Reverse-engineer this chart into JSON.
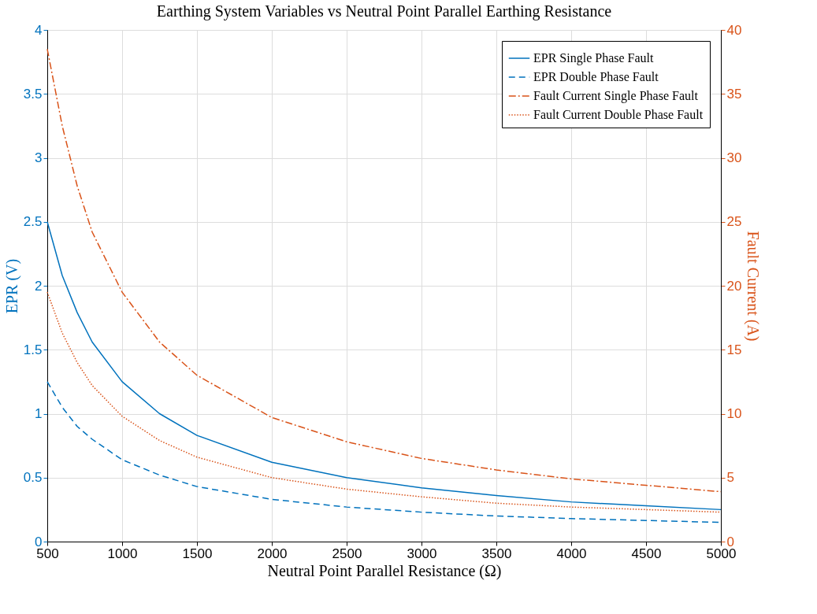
{
  "chart_data": {
    "type": "line",
    "title": "Earthing System Variables vs Neutral Point Parallel Earthing Resistance",
    "xlabel": "Neutral Point Parallel Resistance (Ω)",
    "ylabel": "EPR (V)",
    "y2label": "Fault Current (A)",
    "x": [
      500,
      600,
      700,
      800,
      1000,
      1250,
      1500,
      2000,
      2500,
      3000,
      3500,
      4000,
      4500,
      5000
    ],
    "series": [
      {
        "name": "EPR Single Phase Fault",
        "color": "#0072bd",
        "line_style": "solid",
        "values": [
          2.5,
          2.08,
          1.79,
          1.56,
          1.25,
          1.0,
          0.83,
          0.62,
          0.5,
          0.42,
          0.36,
          0.31,
          0.28,
          0.25
        ]
      },
      {
        "name": "EPR Double Phase Fault",
        "color": "#0072bd",
        "line_style": "dashed",
        "values": [
          1.25,
          1.05,
          0.9,
          0.8,
          0.64,
          0.52,
          0.43,
          0.33,
          0.27,
          0.23,
          0.2,
          0.18,
          0.165,
          0.15
        ]
      },
      {
        "name": "Fault Current Single Phase Fault",
        "color": "#d95319",
        "line_style": "dashdot",
        "axis": "y2",
        "values": [
          38.5,
          32.5,
          27.8,
          24.2,
          19.5,
          15.6,
          13,
          9.7,
          7.8,
          6.5,
          5.6,
          4.9,
          4.4,
          3.9
        ]
      },
      {
        "name": "Fault Current Double Phase Fault",
        "color": "#d95319",
        "line_style": "dotted",
        "axis": "y2",
        "values": [
          19.5,
          16.3,
          14,
          12.2,
          9.8,
          7.9,
          6.6,
          5,
          4.1,
          3.5,
          3.0,
          2.7,
          2.5,
          2.3
        ]
      }
    ],
    "xlim": [
      500,
      5000
    ],
    "xticks": [
      500,
      1000,
      1500,
      2000,
      2500,
      3000,
      3500,
      4000,
      4500,
      5000
    ],
    "ylim": [
      0,
      4
    ],
    "yticks": [
      0,
      0.5,
      1,
      1.5,
      2,
      2.5,
      3,
      3.5,
      4
    ],
    "y2lim": [
      0,
      40
    ],
    "y2ticks": [
      0,
      5,
      10,
      15,
      20,
      25,
      30,
      35,
      40
    ],
    "grid": true,
    "legend": "top right"
  }
}
